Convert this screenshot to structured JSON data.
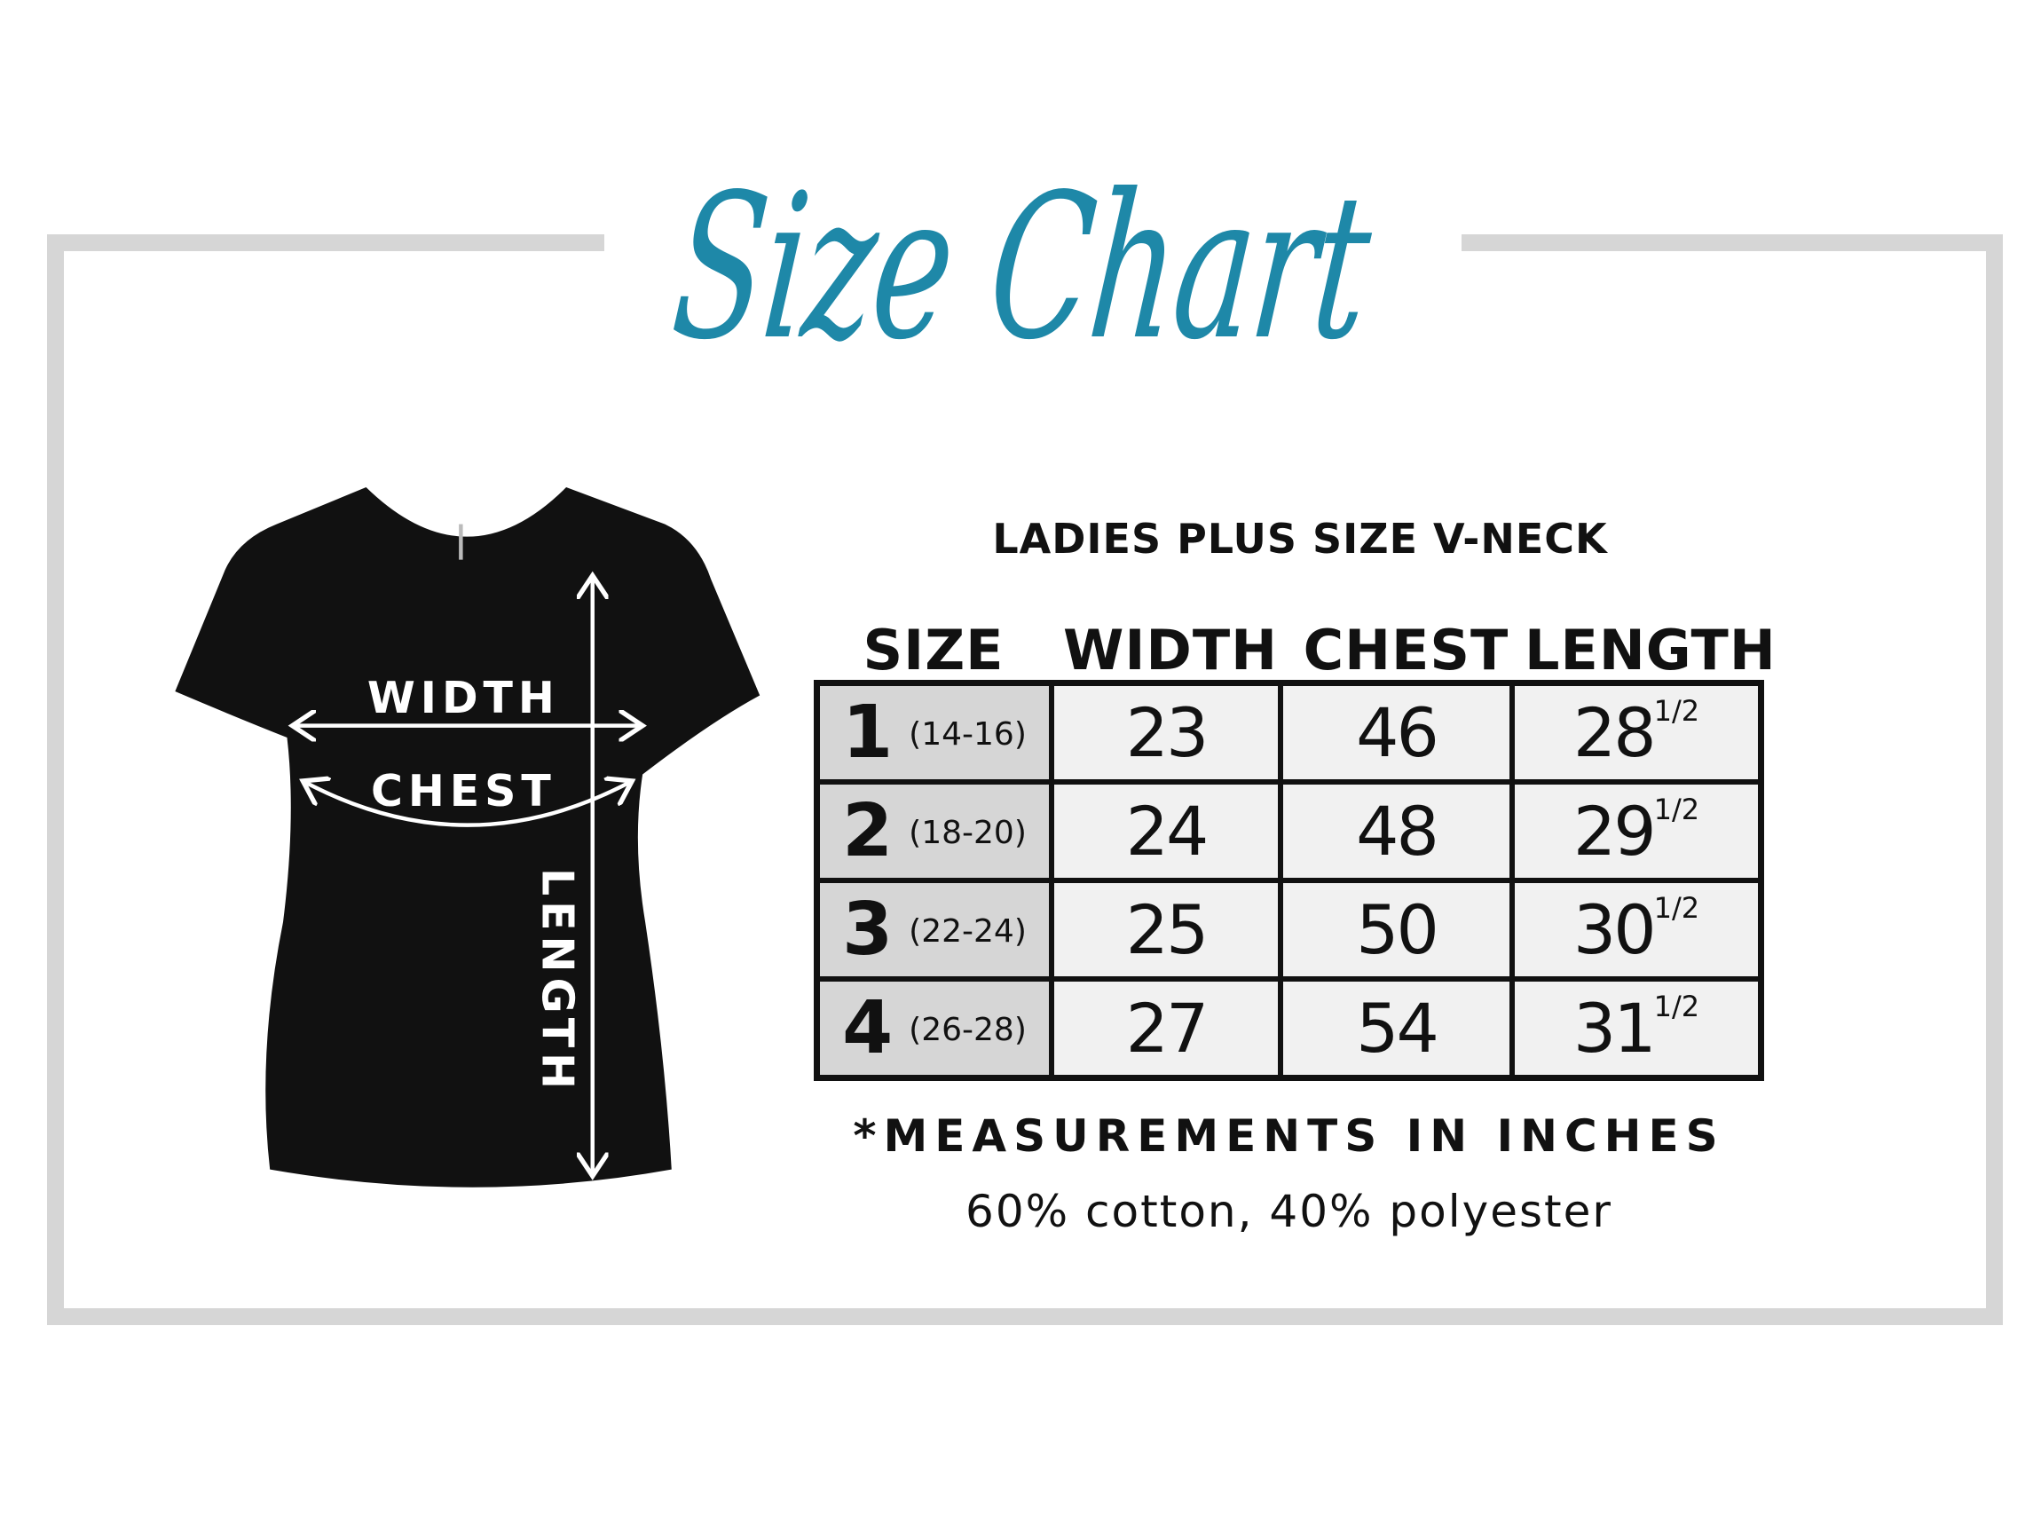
{
  "title": "Size Chart",
  "product": "LADIES PLUS SIZE V-NECK",
  "colors": {
    "title": "#1e88a8",
    "frame": "#d6d6d6",
    "shirt": "#111111",
    "size_cell": "#d6d6d6",
    "value_cell": "#f1f1f1"
  },
  "shirt_labels": {
    "width": "WIDTH",
    "chest": "CHEST",
    "length": "LENGTH"
  },
  "table": {
    "headers": [
      "SIZE",
      "WIDTH",
      "CHEST",
      "LENGTH"
    ],
    "rows": [
      {
        "size": "1",
        "range": "(14-16)",
        "width": "23",
        "chest": "46",
        "length": "28",
        "length_fraction": "1/2"
      },
      {
        "size": "2",
        "range": "(18-20)",
        "width": "24",
        "chest": "48",
        "length": "29",
        "length_fraction": "1/2"
      },
      {
        "size": "3",
        "range": "(22-24)",
        "width": "25",
        "chest": "50",
        "length": "30",
        "length_fraction": "1/2"
      },
      {
        "size": "4",
        "range": "(26-28)",
        "width": "27",
        "chest": "54",
        "length": "31",
        "length_fraction": "1/2"
      }
    ]
  },
  "note": "*MEASUREMENTS IN INCHES",
  "fabric": "60% cotton, 40% polyester"
}
